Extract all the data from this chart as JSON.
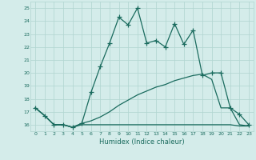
{
  "xlabel": "Humidex (Indice chaleur)",
  "x": [
    0,
    1,
    2,
    3,
    4,
    5,
    6,
    7,
    8,
    9,
    10,
    11,
    12,
    13,
    14,
    15,
    16,
    17,
    18,
    19,
    20,
    21,
    22,
    23
  ],
  "y_main": [
    17.3,
    16.7,
    16.0,
    16.0,
    15.8,
    16.1,
    18.5,
    20.5,
    22.3,
    24.3,
    23.7,
    25.0,
    22.3,
    22.5,
    22.0,
    23.8,
    22.2,
    23.3,
    19.8,
    20.0,
    20.0,
    17.3,
    16.8,
    16.0
  ],
  "y_low": [
    17.3,
    16.7,
    16.0,
    16.0,
    15.8,
    16.0,
    16.0,
    16.0,
    16.0,
    16.0,
    16.0,
    16.0,
    16.0,
    16.0,
    16.0,
    16.0,
    16.0,
    16.0,
    16.0,
    16.0,
    16.0,
    16.0,
    15.9,
    15.9
  ],
  "y_high": [
    17.3,
    16.7,
    16.0,
    16.0,
    15.8,
    16.1,
    16.3,
    16.6,
    17.0,
    17.5,
    17.9,
    18.3,
    18.6,
    18.9,
    19.1,
    19.4,
    19.6,
    19.8,
    19.9,
    19.5,
    17.3,
    17.3,
    16.0,
    15.9
  ],
  "ylim": [
    15.5,
    25.5
  ],
  "yticks": [
    16,
    17,
    18,
    19,
    20,
    21,
    22,
    23,
    24,
    25
  ],
  "xlim": [
    -0.5,
    23.5
  ],
  "xticks": [
    0,
    1,
    2,
    3,
    4,
    5,
    6,
    7,
    8,
    9,
    10,
    11,
    12,
    13,
    14,
    15,
    16,
    17,
    18,
    19,
    20,
    21,
    22,
    23
  ],
  "line_color": "#1a6b5e",
  "bg_color": "#d4ecea",
  "grid_color": "#b0d4d0",
  "marker": "+",
  "marker_size": 4,
  "lw": 0.9
}
